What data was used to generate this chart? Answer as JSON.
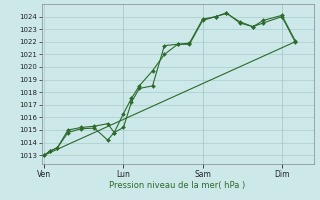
{
  "background_color": "#cce8e8",
  "grid_color": "#aacccc",
  "line_color": "#2d6a2d",
  "xlabel": "Pression niveau de la mer( hPa )",
  "ylim": [
    1012.3,
    1025.0
  ],
  "yticks": [
    1013,
    1014,
    1015,
    1016,
    1017,
    1018,
    1019,
    1020,
    1021,
    1022,
    1023,
    1024
  ],
  "xtick_labels": [
    "Ven",
    "Lun",
    "Sam",
    "Dim"
  ],
  "xtick_positions": [
    0,
    3,
    6,
    9
  ],
  "xlim": [
    -0.1,
    10.2
  ],
  "series1_x": [
    0,
    0.2,
    0.5,
    0.9,
    1.4,
    1.9,
    2.4,
    2.65,
    3.0,
    3.3,
    3.6,
    4.1,
    4.55,
    5.05,
    5.5,
    6.0,
    6.5,
    6.9,
    7.4,
    7.9,
    8.3,
    9.0,
    9.5
  ],
  "series1_y": [
    1013.0,
    1013.3,
    1013.6,
    1014.8,
    1015.1,
    1015.15,
    1014.2,
    1014.8,
    1015.2,
    1017.2,
    1018.3,
    1018.5,
    1021.7,
    1021.8,
    1021.8,
    1023.7,
    1024.0,
    1024.25,
    1023.6,
    1023.2,
    1023.5,
    1024.0,
    1022.0
  ],
  "series2_x": [
    0,
    0.2,
    0.5,
    0.9,
    1.4,
    1.9,
    2.4,
    2.65,
    3.0,
    3.3,
    3.6,
    4.1,
    4.55,
    5.05,
    5.5,
    6.0,
    6.5,
    6.9,
    7.4,
    7.9,
    8.3,
    9.0,
    9.5
  ],
  "series2_y": [
    1013.0,
    1013.3,
    1013.6,
    1015.0,
    1015.2,
    1015.3,
    1015.5,
    1014.8,
    1016.3,
    1017.5,
    1018.5,
    1019.7,
    1021.0,
    1021.8,
    1021.9,
    1023.8,
    1024.0,
    1024.3,
    1023.5,
    1023.2,
    1023.7,
    1024.1,
    1022.1
  ],
  "trend_x": [
    0,
    9.5
  ],
  "trend_y": [
    1013.0,
    1022.0
  ],
  "vline_x": [
    3,
    6,
    9
  ]
}
